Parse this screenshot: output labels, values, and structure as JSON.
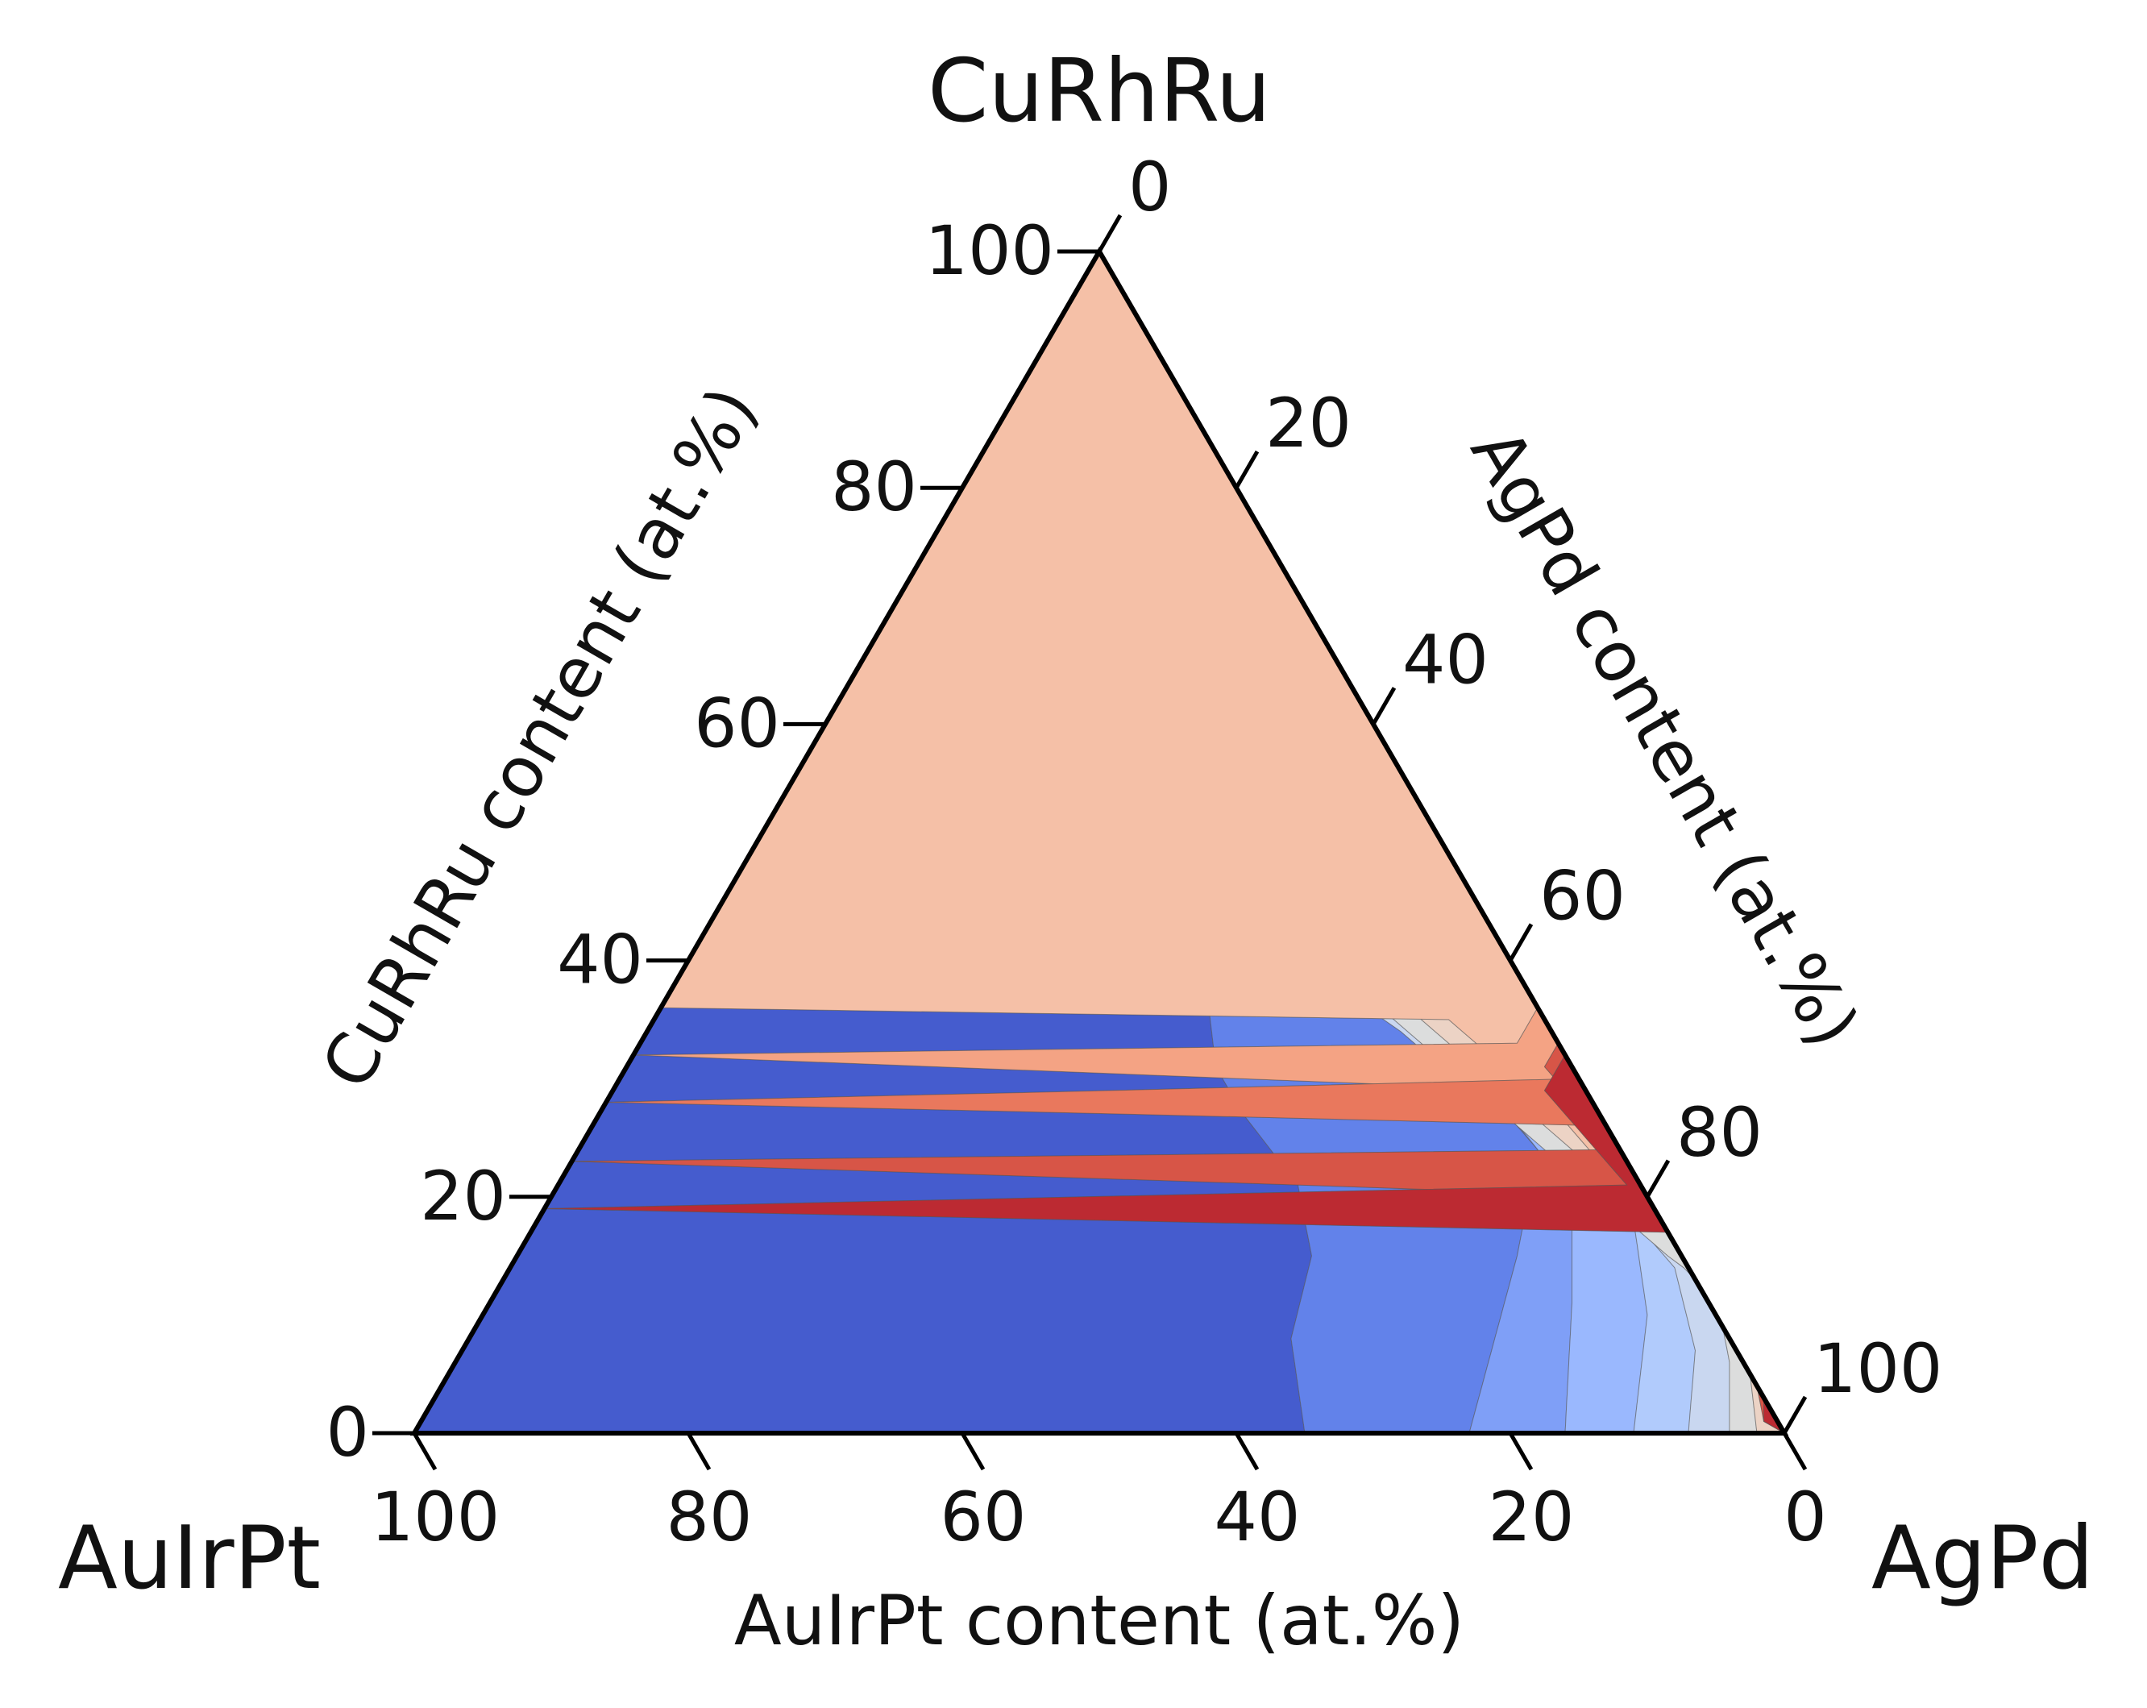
{
  "chart_data": {
    "type": "ternary-contour",
    "vertices": {
      "top": "CuRhRu",
      "left": "AuIrPt",
      "right": "AgPd"
    },
    "axes": {
      "left": {
        "label": "CuRhRu content (at.%)",
        "component": "CuRhRu",
        "ticks": [
          "0",
          "20",
          "40",
          "60",
          "80",
          "100"
        ]
      },
      "right": {
        "label": "AgPd content (at.%)",
        "component": "AgPd",
        "ticks": [
          "0",
          "20",
          "40",
          "60",
          "80",
          "100"
        ]
      },
      "bottom": {
        "label": "AuIrPt content (at.%)",
        "component": "AuIrPt",
        "ticks": [
          "100",
          "80",
          "60",
          "40",
          "20",
          "0"
        ]
      }
    },
    "range": [
      0,
      100
    ],
    "colormap": "coolwarm",
    "bands": [
      {
        "color": "#455cce"
      },
      {
        "color": "#6282ea"
      },
      {
        "color": "#7f9ff7"
      },
      {
        "color": "#9ab8fe"
      },
      {
        "color": "#b1cbfc"
      },
      {
        "color": "#c9d7f0"
      },
      {
        "color": "#dcdddd"
      },
      {
        "color": "#ecd3c5"
      },
      {
        "color": "#f5c0a7"
      },
      {
        "color": "#f4a384"
      },
      {
        "color": "#e9785d"
      },
      {
        "color": "#d75547"
      },
      {
        "color": "#bc2a32"
      }
    ],
    "contour_boundaries": [
      [
        [
          65,
          0
        ],
        [
          60,
          8
        ],
        [
          58,
          15
        ],
        [
          54,
          21
        ],
        [
          47,
          27
        ],
        [
          43,
          31
        ],
        [
          40,
          36
        ],
        [
          36,
          42
        ],
        [
          28,
          47
        ],
        [
          18,
          52
        ],
        [
          0,
          62
        ]
      ],
      [
        [
          77,
          0
        ],
        [
          73,
          15
        ],
        [
          70,
          24
        ],
        [
          65,
          28
        ],
        [
          60,
          31
        ],
        [
          53,
          36
        ],
        [
          47,
          40
        ],
        [
          40,
          44
        ],
        [
          31,
          48
        ],
        [
          21,
          53
        ],
        [
          0,
          67
        ]
      ],
      [
        [
          84,
          0
        ],
        [
          79,
          11
        ],
        [
          75,
          19
        ],
        [
          70,
          24
        ],
        [
          64,
          29
        ],
        [
          57,
          33
        ],
        [
          50,
          37
        ],
        [
          43,
          41
        ],
        [
          36,
          45
        ],
        [
          27,
          49
        ],
        [
          0,
          59
        ]
      ],
      [
        [
          89,
          0
        ],
        [
          85,
          10
        ],
        [
          80,
          18
        ],
        [
          75,
          22
        ],
        [
          70,
          26
        ],
        [
          63,
          30
        ],
        [
          57,
          34
        ],
        [
          50,
          38
        ],
        [
          43,
          42
        ],
        [
          35,
          46
        ],
        [
          0,
          55
        ]
      ],
      [
        [
          93,
          0
        ],
        [
          90,
          7
        ],
        [
          85,
          14
        ],
        [
          80,
          18
        ],
        [
          74,
          22
        ],
        [
          68,
          26
        ],
        [
          61,
          30
        ],
        [
          55,
          34
        ],
        [
          48,
          38
        ],
        [
          41,
          42
        ],
        [
          0,
          48
        ]
      ],
      [
        [
          96,
          0
        ],
        [
          93,
          6
        ],
        [
          89,
          12
        ],
        [
          84,
          15
        ],
        [
          78,
          19
        ],
        [
          72,
          23
        ],
        [
          66,
          27
        ],
        [
          60,
          31
        ],
        [
          54,
          35
        ],
        [
          47,
          39
        ],
        [
          0,
          43
        ]
      ],
      [
        [
          98,
          0
        ],
        [
          95,
          5
        ],
        [
          92,
          11
        ],
        [
          88,
          14
        ],
        [
          82,
          18
        ],
        [
          77,
          21
        ],
        [
          71,
          25
        ],
        [
          65,
          29
        ],
        [
          59,
          33
        ],
        [
          53,
          37
        ],
        [
          0,
          38
        ]
      ],
      [
        [
          100,
          2
        ],
        [
          97,
          4
        ],
        [
          94,
          9
        ],
        [
          91,
          12
        ],
        [
          86,
          16
        ],
        [
          81,
          20
        ],
        [
          75,
          23
        ],
        [
          70,
          27
        ],
        [
          64,
          31
        ],
        [
          58,
          35
        ],
        [
          0,
          35
        ]
      ],
      [
        [
          100,
          0
        ],
        [
          98,
          3
        ],
        [
          96,
          9
        ],
        [
          93,
          11
        ],
        [
          89,
          14
        ],
        [
          84,
          18
        ],
        [
          79,
          22
        ],
        [
          74,
          26
        ],
        [
          68,
          29
        ],
        [
          64,
          33
        ],
        [
          0,
          32
        ]
      ],
      [
        [
          100,
          0
        ],
        [
          98,
          1
        ],
        [
          96,
          6
        ],
        [
          93,
          12
        ],
        [
          91,
          15
        ],
        [
          87,
          19
        ],
        [
          82,
          23
        ],
        [
          77,
          26
        ],
        [
          73,
          30
        ],
        [
          69,
          33
        ],
        [
          0,
          28
        ]
      ],
      [
        [
          100,
          0
        ],
        [
          98,
          1
        ],
        [
          96,
          4
        ],
        [
          94,
          8
        ],
        [
          91,
          12
        ],
        [
          86,
          16
        ],
        [
          81,
          20
        ],
        [
          76,
          24
        ],
        [
          72,
          27
        ],
        [
          67,
          31
        ],
        [
          0,
          23
        ]
      ],
      [
        [
          100,
          0
        ],
        [
          98,
          1
        ],
        [
          97,
          3
        ],
        [
          95,
          5
        ],
        [
          92,
          9
        ],
        [
          88,
          13
        ],
        [
          83,
          17
        ],
        [
          78,
          21
        ],
        [
          73,
          25
        ],
        [
          68,
          29
        ],
        [
          0,
          19
        ]
      ]
    ]
  }
}
